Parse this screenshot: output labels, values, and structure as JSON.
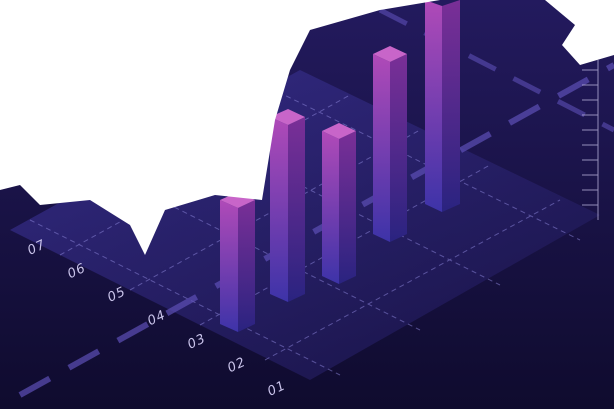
{
  "axis_labels": [
    "07",
    "06",
    "05",
    "04",
    "03",
    "02",
    "01"
  ]
}
